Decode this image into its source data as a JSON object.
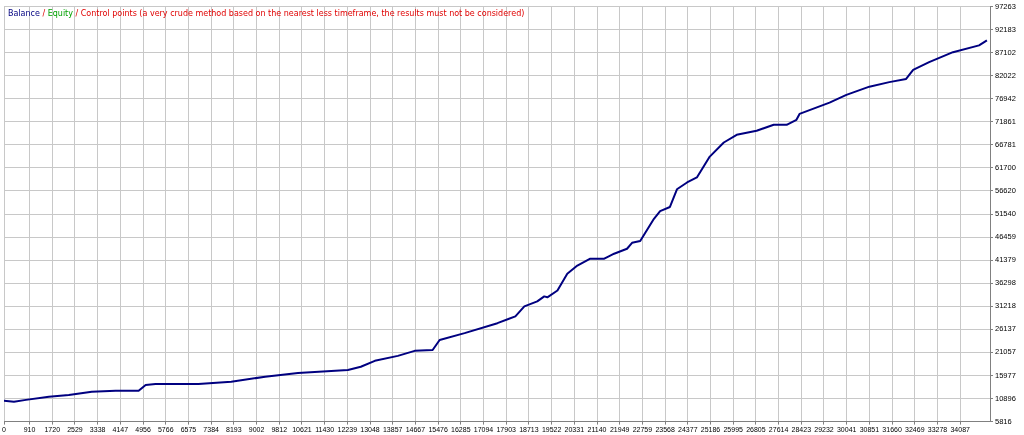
{
  "chart_data": {
    "type": "line",
    "annotations": [
      "/",
      "Equity",
      "/",
      "Control points (a very crude method based on the nearest less timeframe, the results must not be considered)"
    ],
    "x": [
      0,
      355,
      782,
      1600,
      2310,
      3130,
      3980,
      4800,
      5050,
      5400,
      6930,
      8100,
      9310,
      10480,
      12260,
      12720,
      13220,
      14040,
      14640,
      15280,
      15530,
      16420,
      17590,
      18230,
      18550,
      19010,
      19260,
      19370,
      19730,
      20080,
      20440,
      20900,
      21400,
      21750,
      22210,
      22390,
      22680,
      23170,
      23390,
      23740,
      23990,
      24350,
      24700,
      25160,
      25660,
      26120,
      26830,
      27440,
      27900,
      28250,
      28360,
      29430,
      30030,
      30850,
      31560,
      32160,
      32410,
      32980,
      33830,
      34760,
      35040
    ],
    "series": [
      {
        "name": "Balance",
        "color": "#000080",
        "values": [
          10400,
          10200,
          10600,
          11300,
          11700,
          12400,
          12600,
          12600,
          13900,
          14100,
          14100,
          14600,
          15700,
          16500,
          17200,
          17900,
          19200,
          20300,
          21400,
          21600,
          23800,
          25300,
          27500,
          29000,
          31200,
          32300,
          33400,
          33200,
          34700,
          38400,
          40200,
          41700,
          41700,
          42800,
          43900,
          45200,
          45600,
          50500,
          52200,
          53100,
          57000,
          58500,
          59600,
          64200,
          67300,
          69000,
          69900,
          71200,
          71200,
          72300,
          73600,
          76100,
          77800,
          79600,
          80600,
          81300,
          83300,
          85000,
          87200,
          88700,
          89800
        ]
      }
    ],
    "xlim": [
      0,
      35150
    ],
    "xticks": [
      0,
      910,
      1720,
      2529,
      3338,
      4147,
      4956,
      5766,
      6575,
      7384,
      8193,
      9002,
      9812,
      10621,
      11430,
      12239,
      13048,
      13857,
      14667,
      15476,
      16285,
      17094,
      17903,
      18713,
      19522,
      20331,
      21140,
      21949,
      22759,
      23568,
      24377,
      25186,
      25995,
      26805,
      27614,
      28423,
      29232,
      30041,
      30851,
      31660,
      32469,
      33278,
      34087
    ],
    "ylim": [
      5816,
      97263
    ],
    "yticks": [
      5816,
      10896,
      15977,
      21057,
      26137,
      31218,
      36298,
      41379,
      46459,
      51540,
      56620,
      61700,
      66781,
      71861,
      76942,
      82022,
      87102,
      92183,
      97263
    ],
    "grid": true,
    "legend": "top left",
    "line_style": "solid",
    "marker": "none"
  }
}
